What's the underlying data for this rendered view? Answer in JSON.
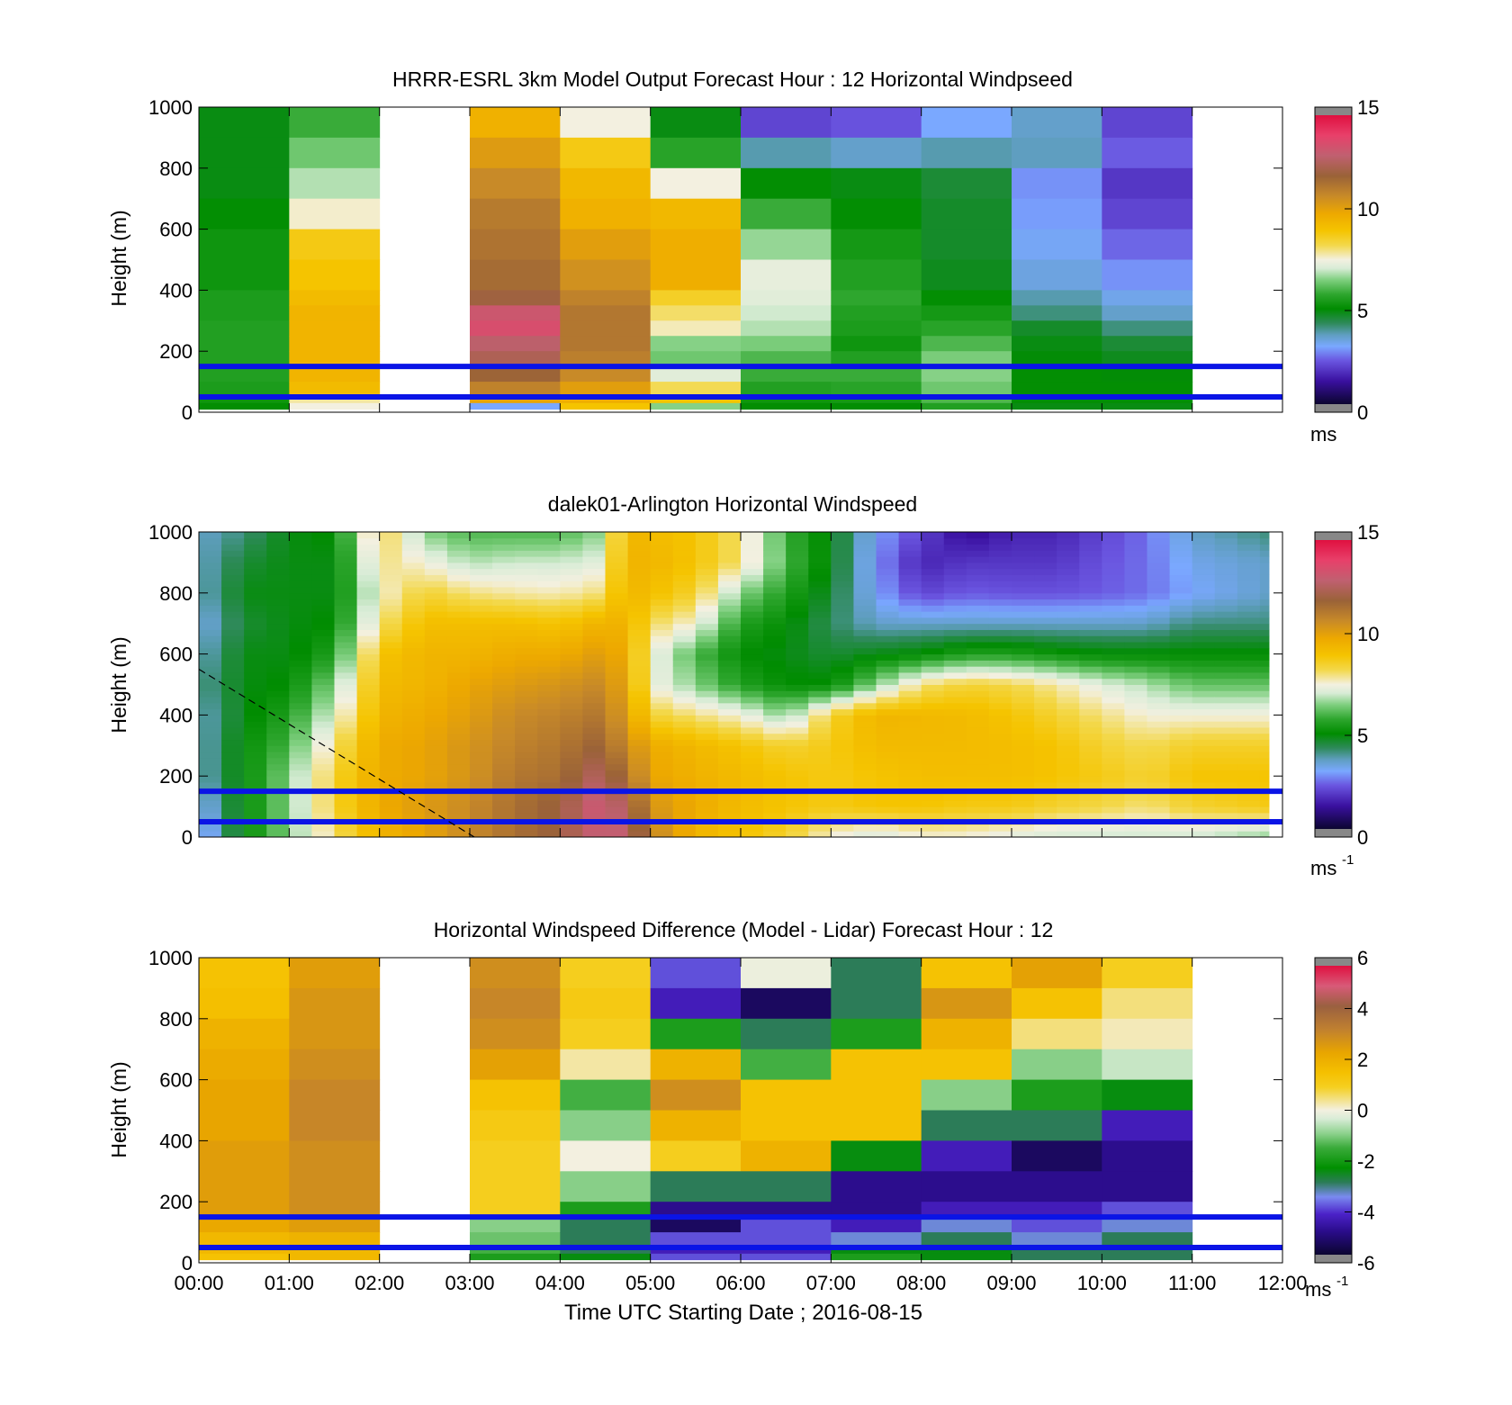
{
  "figure": {
    "x_tick_labels": [
      "00:00",
      "01:00",
      "02:00",
      "03:00",
      "04:00",
      "05:00",
      "06:00",
      "07:00",
      "08:00",
      "09:00",
      "10:00",
      "11:00",
      "12:00"
    ],
    "xlabel": "Time UTC  Starting Date ; 2016-08-15",
    "reference_heights_m": [
      150,
      50
    ],
    "reference_line_color": "#0a14e6"
  },
  "chart_data": [
    {
      "type": "heatmap",
      "title": "HRRR-ESRL 3km Model Output   Forecast Hour : 12 Horizontal Windpseed",
      "ylabel": "Height (m)",
      "ylim": [
        0,
        1000
      ],
      "y_tick_labels": [
        "0",
        "200",
        "400",
        "600",
        "800",
        "1000"
      ],
      "colorbar": {
        "min": 0,
        "max": 15,
        "tick_labels": [
          "0",
          "5",
          "10",
          "15"
        ],
        "unit": "ms",
        "unit_sup": ""
      },
      "x_hours": [
        0,
        1,
        2,
        3,
        4,
        5,
        6,
        7,
        8,
        9,
        10,
        11,
        12
      ],
      "rows_top_m": [
        1000,
        900,
        800,
        700,
        600,
        500,
        400,
        350,
        300,
        250,
        200,
        150,
        100,
        50,
        30
      ],
      "columns": [
        {
          "hour_start": 0,
          "values": [
            4.8,
            4.8,
            4.8,
            5.0,
            5.2,
            5.2,
            5.4,
            5.4,
            5.5,
            5.5,
            5.5,
            5.5,
            5.4,
            5.2,
            5.0
          ]
        },
        {
          "hour_start": 1,
          "values": [
            5.8,
            6.3,
            6.8,
            7.6,
            8.8,
            9.0,
            9.3,
            9.5,
            9.5,
            9.5,
            9.5,
            9.5,
            9.3,
            7.8,
            7.5
          ]
        },
        {
          "hour_start": 2,
          "values": [
            null,
            null,
            null,
            null,
            null,
            null,
            null,
            null,
            null,
            null,
            null,
            null,
            null,
            null,
            null
          ]
        },
        {
          "hour_start": 3,
          "values": [
            9.6,
            10.3,
            10.8,
            11.2,
            11.4,
            11.6,
            12.0,
            13.2,
            13.5,
            12.8,
            12.4,
            11.8,
            11.0,
            10.0,
            3.0
          ]
        },
        {
          "hour_start": 4,
          "values": [
            7.5,
            8.8,
            9.4,
            9.6,
            10.2,
            10.6,
            11.0,
            11.3,
            11.3,
            11.3,
            11.1,
            10.8,
            10.2,
            9.7,
            9.0
          ]
        },
        {
          "hour_start": 5,
          "values": [
            4.8,
            5.6,
            7.5,
            9.4,
            9.7,
            9.7,
            8.6,
            8.1,
            7.7,
            6.5,
            6.3,
            7.2,
            8.2,
            9.0,
            6.5
          ]
        },
        {
          "hour_start": 6,
          "values": [
            2.0,
            3.7,
            5.0,
            5.8,
            6.6,
            7.3,
            7.2,
            7.0,
            6.8,
            6.4,
            6.0,
            5.8,
            5.5,
            5.2,
            5.0
          ]
        },
        {
          "hour_start": 7,
          "values": [
            2.2,
            3.5,
            4.8,
            5.0,
            5.3,
            5.5,
            5.7,
            5.5,
            5.4,
            5.2,
            5.5,
            5.8,
            5.6,
            5.3,
            5.0
          ]
        },
        {
          "hour_start": 8,
          "values": [
            3.0,
            3.7,
            4.5,
            4.6,
            4.6,
            4.7,
            5.0,
            5.3,
            5.6,
            6.0,
            6.4,
            6.5,
            6.3,
            6.0,
            5.5
          ]
        },
        {
          "hour_start": 9,
          "values": [
            3.5,
            3.6,
            2.8,
            2.9,
            3.1,
            3.3,
            3.7,
            4.0,
            4.6,
            4.8,
            4.9,
            5.0,
            5.0,
            5.0,
            4.8
          ]
        },
        {
          "hour_start": 10,
          "values": [
            2.0,
            2.3,
            1.8,
            2.0,
            2.4,
            2.8,
            3.2,
            3.5,
            4.0,
            4.5,
            4.7,
            4.9,
            5.0,
            5.0,
            4.8
          ]
        },
        {
          "hour_start": 11,
          "values": [
            null,
            null,
            null,
            null,
            null,
            null,
            null,
            null,
            null,
            null,
            null,
            null,
            null,
            null,
            null
          ]
        }
      ]
    },
    {
      "type": "heatmap",
      "title": "dalek01-Arlington  Horizontal Windspeed",
      "ylabel": "Height (m)",
      "ylim": [
        0,
        1000
      ],
      "y_tick_labels": [
        "0",
        "200",
        "400",
        "600",
        "800",
        "1000"
      ],
      "colorbar": {
        "min": 0,
        "max": 15,
        "tick_labels": [
          "0",
          "5",
          "10",
          "15"
        ],
        "unit": "ms",
        "unit_sup": "-1"
      },
      "time_range_hours": [
        0,
        11.85
      ],
      "column_width_hours": 0.25,
      "heights_m": [
        0,
        100,
        200,
        300,
        400,
        500,
        600,
        700,
        800,
        900,
        1000
      ],
      "keyframes": [
        {
          "hour": 0.0,
          "values": [
            2.5,
            3.0,
            3.5,
            3.5,
            3.5,
            3.8,
            3.5,
            3.2,
            3.5,
            3.5,
            3.5
          ]
        },
        {
          "hour": 0.5,
          "values": [
            5.0,
            5.0,
            5.0,
            5.0,
            4.8,
            4.8,
            4.8,
            4.5,
            4.8,
            4.5,
            4.0
          ]
        },
        {
          "hour": 1.0,
          "values": [
            6.5,
            6.5,
            6.5,
            6.0,
            5.5,
            5.0,
            4.8,
            4.8,
            4.8,
            4.8,
            4.8
          ]
        },
        {
          "hour": 1.5,
          "values": [
            8.0,
            8.5,
            8.5,
            8.0,
            7.2,
            6.5,
            5.5,
            5.0,
            4.8,
            4.8,
            5.0
          ]
        },
        {
          "hour": 2.0,
          "values": [
            9.5,
            9.8,
            9.8,
            9.8,
            9.5,
            9.3,
            9.0,
            8.0,
            7.5,
            8.0,
            8.5
          ]
        },
        {
          "hour": 2.5,
          "values": [
            10.0,
            10.3,
            10.0,
            10.0,
            9.8,
            9.5,
            9.5,
            9.2,
            8.5,
            7.5,
            6.5
          ]
        },
        {
          "hour": 3.0,
          "values": [
            10.8,
            10.8,
            10.5,
            10.5,
            10.2,
            10.0,
            9.5,
            9.2,
            8.0,
            6.8,
            6.0
          ]
        },
        {
          "hour": 3.5,
          "values": [
            11.5,
            11.5,
            11.3,
            11.0,
            10.8,
            10.3,
            9.8,
            9.2,
            7.8,
            7.0,
            6.0
          ]
        },
        {
          "hour": 4.0,
          "values": [
            12.0,
            12.0,
            11.5,
            11.3,
            11.0,
            10.5,
            9.8,
            9.0,
            7.7,
            7.0,
            6.0
          ]
        },
        {
          "hour": 4.4,
          "values": [
            13.0,
            13.2,
            12.5,
            11.8,
            11.3,
            10.8,
            10.2,
            9.5,
            8.0,
            7.2,
            6.5
          ]
        },
        {
          "hour": 4.75,
          "values": [
            13.0,
            12.5,
            11.5,
            10.8,
            10.3,
            10.0,
            9.8,
            9.6,
            9.5,
            9.5,
            9.5
          ]
        },
        {
          "hour": 5.0,
          "values": [
            11.0,
            10.5,
            10.0,
            9.8,
            8.5,
            7.5,
            7.5,
            8.2,
            9.2,
            9.5,
            9.3
          ]
        },
        {
          "hour": 5.5,
          "values": [
            9.5,
            9.8,
            9.6,
            9.4,
            8.0,
            6.5,
            6.0,
            7.5,
            8.5,
            9.0,
            9.0
          ]
        },
        {
          "hour": 6.0,
          "values": [
            9.0,
            9.3,
            9.3,
            9.0,
            7.5,
            5.5,
            5.0,
            5.5,
            6.5,
            8.0,
            8.0
          ]
        },
        {
          "hour": 6.5,
          "values": [
            8.5,
            9.0,
            9.0,
            8.5,
            6.5,
            5.0,
            4.8,
            5.0,
            5.5,
            6.0,
            5.8
          ]
        },
        {
          "hour": 7.0,
          "values": [
            7.5,
            8.8,
            8.8,
            8.8,
            8.5,
            5.0,
            4.5,
            4.2,
            4.5,
            4.8,
            4.8
          ]
        },
        {
          "hour": 7.5,
          "values": [
            7.0,
            9.0,
            9.0,
            9.3,
            9.5,
            6.5,
            4.8,
            3.5,
            3.0,
            2.8,
            3.0
          ]
        },
        {
          "hour": 8.0,
          "values": [
            7.5,
            9.0,
            9.2,
            9.3,
            9.4,
            8.0,
            5.0,
            3.5,
            2.0,
            1.5,
            2.0
          ]
        },
        {
          "hour": 8.5,
          "values": [
            7.5,
            8.8,
            9.2,
            9.3,
            9.3,
            8.5,
            5.5,
            3.5,
            2.3,
            1.8,
            1.0
          ]
        },
        {
          "hour": 9.0,
          "values": [
            7.2,
            8.8,
            9.2,
            9.2,
            9.0,
            8.3,
            5.5,
            3.5,
            2.2,
            1.8,
            1.5
          ]
        },
        {
          "hour": 9.5,
          "values": [
            7.0,
            8.5,
            9.0,
            9.0,
            8.5,
            7.8,
            5.2,
            3.5,
            2.2,
            1.8,
            1.5
          ]
        },
        {
          "hour": 10.0,
          "values": [
            7.0,
            8.3,
            8.8,
            8.5,
            8.0,
            7.2,
            5.0,
            3.5,
            2.3,
            2.2,
            2.0
          ]
        },
        {
          "hour": 10.5,
          "values": [
            7.0,
            8.0,
            8.5,
            8.2,
            7.5,
            6.8,
            5.0,
            3.5,
            2.5,
            2.5,
            2.5
          ]
        },
        {
          "hour": 11.0,
          "values": [
            7.0,
            8.5,
            9.0,
            8.6,
            7.5,
            6.2,
            5.0,
            4.0,
            3.0,
            3.2,
            3.5
          ]
        },
        {
          "hour": 11.85,
          "values": [
            6.5,
            8.8,
            9.0,
            8.6,
            7.5,
            6.2,
            5.0,
            4.0,
            3.5,
            3.5,
            4.0
          ]
        }
      ],
      "dashed_line": {
        "from": {
          "hour": 0,
          "height_m": 550
        },
        "to": {
          "hour": 3.05,
          "height_m": 0
        },
        "color": "#000000"
      }
    },
    {
      "type": "heatmap",
      "title": "Horizontal Windspeed Difference (Model - Lidar) Forecast Hour : 12",
      "ylabel": "Height (m)",
      "ylim": [
        0,
        1000
      ],
      "y_tick_labels": [
        "0",
        "200",
        "400",
        "600",
        "800",
        "1000"
      ],
      "colorbar": {
        "min": -6,
        "max": 6,
        "tick_labels": [
          "-6",
          "-4",
          "-2",
          "0",
          "2",
          "4",
          "6"
        ],
        "unit": "ms",
        "unit_sup": "-1"
      },
      "x_hours": [
        0,
        1,
        2,
        3,
        4,
        5,
        6,
        7,
        8,
        9,
        10,
        11,
        12
      ],
      "rows_top_m": [
        1000,
        900,
        800,
        700,
        600,
        500,
        400,
        300,
        200,
        150,
        100,
        50,
        30
      ],
      "columns": [
        {
          "hour_start": 0,
          "values": [
            1.5,
            1.6,
            2.0,
            2.2,
            2.4,
            2.4,
            2.6,
            2.6,
            2.6,
            2.3,
            1.8,
            1.8,
            1.5
          ]
        },
        {
          "hour_start": 1,
          "values": [
            2.6,
            2.8,
            2.8,
            3.0,
            3.2,
            3.2,
            3.0,
            3.0,
            3.0,
            2.6,
            2.0,
            1.8,
            1.8
          ]
        },
        {
          "hour_start": 2,
          "values": [
            null,
            null,
            null,
            null,
            null,
            null,
            null,
            null,
            null,
            null,
            null,
            null,
            null
          ]
        },
        {
          "hour_start": 3,
          "values": [
            3.0,
            3.2,
            3.0,
            2.5,
            1.5,
            1.2,
            1.0,
            1.0,
            1.0,
            -1.0,
            -1.2,
            -1.5,
            -2.0
          ]
        },
        {
          "hour_start": 4,
          "values": [
            1.0,
            1.2,
            1.0,
            0.3,
            -1.5,
            -1.0,
            0.0,
            -1.0,
            -2.0,
            -3.0,
            -3.0,
            -3.0,
            -2.5
          ]
        },
        {
          "hour_start": 5,
          "values": [
            -4.0,
            -4.5,
            -2.0,
            2.0,
            3.0,
            2.0,
            1.0,
            -3.0,
            -5.0,
            -5.5,
            -4.0,
            -4.5,
            -4.0
          ]
        },
        {
          "hour_start": 6,
          "values": [
            -0.1,
            -5.5,
            -3.0,
            -1.5,
            1.5,
            1.5,
            2.0,
            -3.0,
            -5.0,
            -4.0,
            -4.0,
            -4.5,
            -4.0
          ]
        },
        {
          "hour_start": 7,
          "values": [
            -3.0,
            -3.0,
            -2.0,
            1.5,
            1.5,
            1.5,
            -2.5,
            -5.0,
            -5.0,
            -4.5,
            -3.5,
            -2.5,
            -2.0
          ]
        },
        {
          "hour_start": 8,
          "values": [
            1.5,
            2.8,
            2.0,
            1.5,
            -1.0,
            -3.0,
            -4.5,
            -5.0,
            -4.5,
            -3.5,
            -3.0,
            -2.5,
            -2.5
          ]
        },
        {
          "hour_start": 9,
          "values": [
            2.5,
            1.5,
            0.5,
            -1.0,
            -2.0,
            -3.0,
            -5.5,
            -5.0,
            -4.5,
            -4.0,
            -3.5,
            -3.0,
            -3.0
          ]
        },
        {
          "hour_start": 10,
          "values": [
            1.0,
            0.5,
            0.2,
            -0.5,
            -2.5,
            -4.5,
            -5.0,
            -5.0,
            -4.0,
            -3.5,
            -3.0,
            -3.0,
            -3.0
          ]
        },
        {
          "hour_start": 11,
          "values": [
            null,
            null,
            null,
            null,
            null,
            null,
            null,
            null,
            null,
            null,
            null,
            null,
            null
          ]
        }
      ]
    }
  ]
}
